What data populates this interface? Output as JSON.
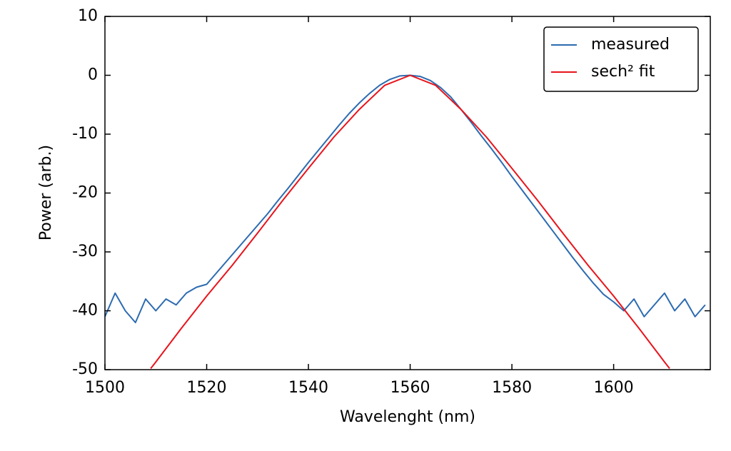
{
  "chart_data": {
    "type": "line",
    "x_label": "Wavelenght (nm)",
    "y_label": "Power (arb.)",
    "xlim": [
      1500,
      1619
    ],
    "ylim": [
      -50,
      10
    ],
    "xticks": [
      1500,
      1520,
      1540,
      1560,
      1580,
      1600
    ],
    "yticks": [
      10,
      0,
      -10,
      -20,
      -30,
      -40,
      -50
    ],
    "grid": false,
    "legend": "upper right",
    "series": [
      {
        "name": "measured",
        "color": "#2c6bb0",
        "x": [
          1500,
          1502,
          1504,
          1506,
          1508,
          1510,
          1512,
          1514,
          1516,
          1518,
          1520,
          1522,
          1524,
          1526,
          1528,
          1530,
          1532,
          1534,
          1536,
          1538,
          1540,
          1542,
          1544,
          1546,
          1548,
          1550,
          1552,
          1554,
          1556,
          1558,
          1560,
          1562,
          1564,
          1566,
          1568,
          1570,
          1572,
          1574,
          1576,
          1578,
          1580,
          1582,
          1584,
          1586,
          1588,
          1590,
          1592,
          1594,
          1596,
          1598,
          1600,
          1602,
          1604,
          1606,
          1608,
          1610,
          1612,
          1614,
          1616,
          1618
        ],
        "values": [
          -41,
          -37,
          -40,
          -42,
          -38,
          -40,
          -38,
          -39,
          -37,
          -36,
          -35.5,
          -33.5,
          -31.5,
          -29.5,
          -27.5,
          -25.5,
          -23.5,
          -21.3,
          -19.2,
          -17,
          -14.8,
          -12.7,
          -10.6,
          -8.5,
          -6.5,
          -4.7,
          -3.1,
          -1.7,
          -0.7,
          -0.1,
          0,
          -0.2,
          -0.9,
          -2.1,
          -3.7,
          -5.8,
          -8,
          -10.3,
          -12.5,
          -14.8,
          -17.2,
          -19.5,
          -21.8,
          -24.1,
          -26.4,
          -28.7,
          -31,
          -33.2,
          -35.3,
          -37.2,
          -38.5,
          -40,
          -38,
          -41,
          -39,
          -37,
          -40,
          -38,
          -41,
          -39
        ]
      },
      {
        "name": "sech² fit",
        "color": "#e8141c",
        "x": [
          1509,
          1510,
          1515,
          1520,
          1525,
          1530,
          1535,
          1540,
          1545,
          1550,
          1555,
          1560,
          1565,
          1570,
          1575,
          1580,
          1585,
          1590,
          1595,
          1600,
          1605,
          1610,
          1611
        ],
        "values": [
          -49.8,
          -48.7,
          -43,
          -37.5,
          -32.3,
          -26.8,
          -21.2,
          -15.8,
          -10.5,
          -5.8,
          -1.7,
          0,
          -1.7,
          -5.8,
          -10.5,
          -15.8,
          -21.2,
          -26.8,
          -32.3,
          -37.5,
          -43,
          -48.7,
          -49.8
        ]
      }
    ]
  }
}
